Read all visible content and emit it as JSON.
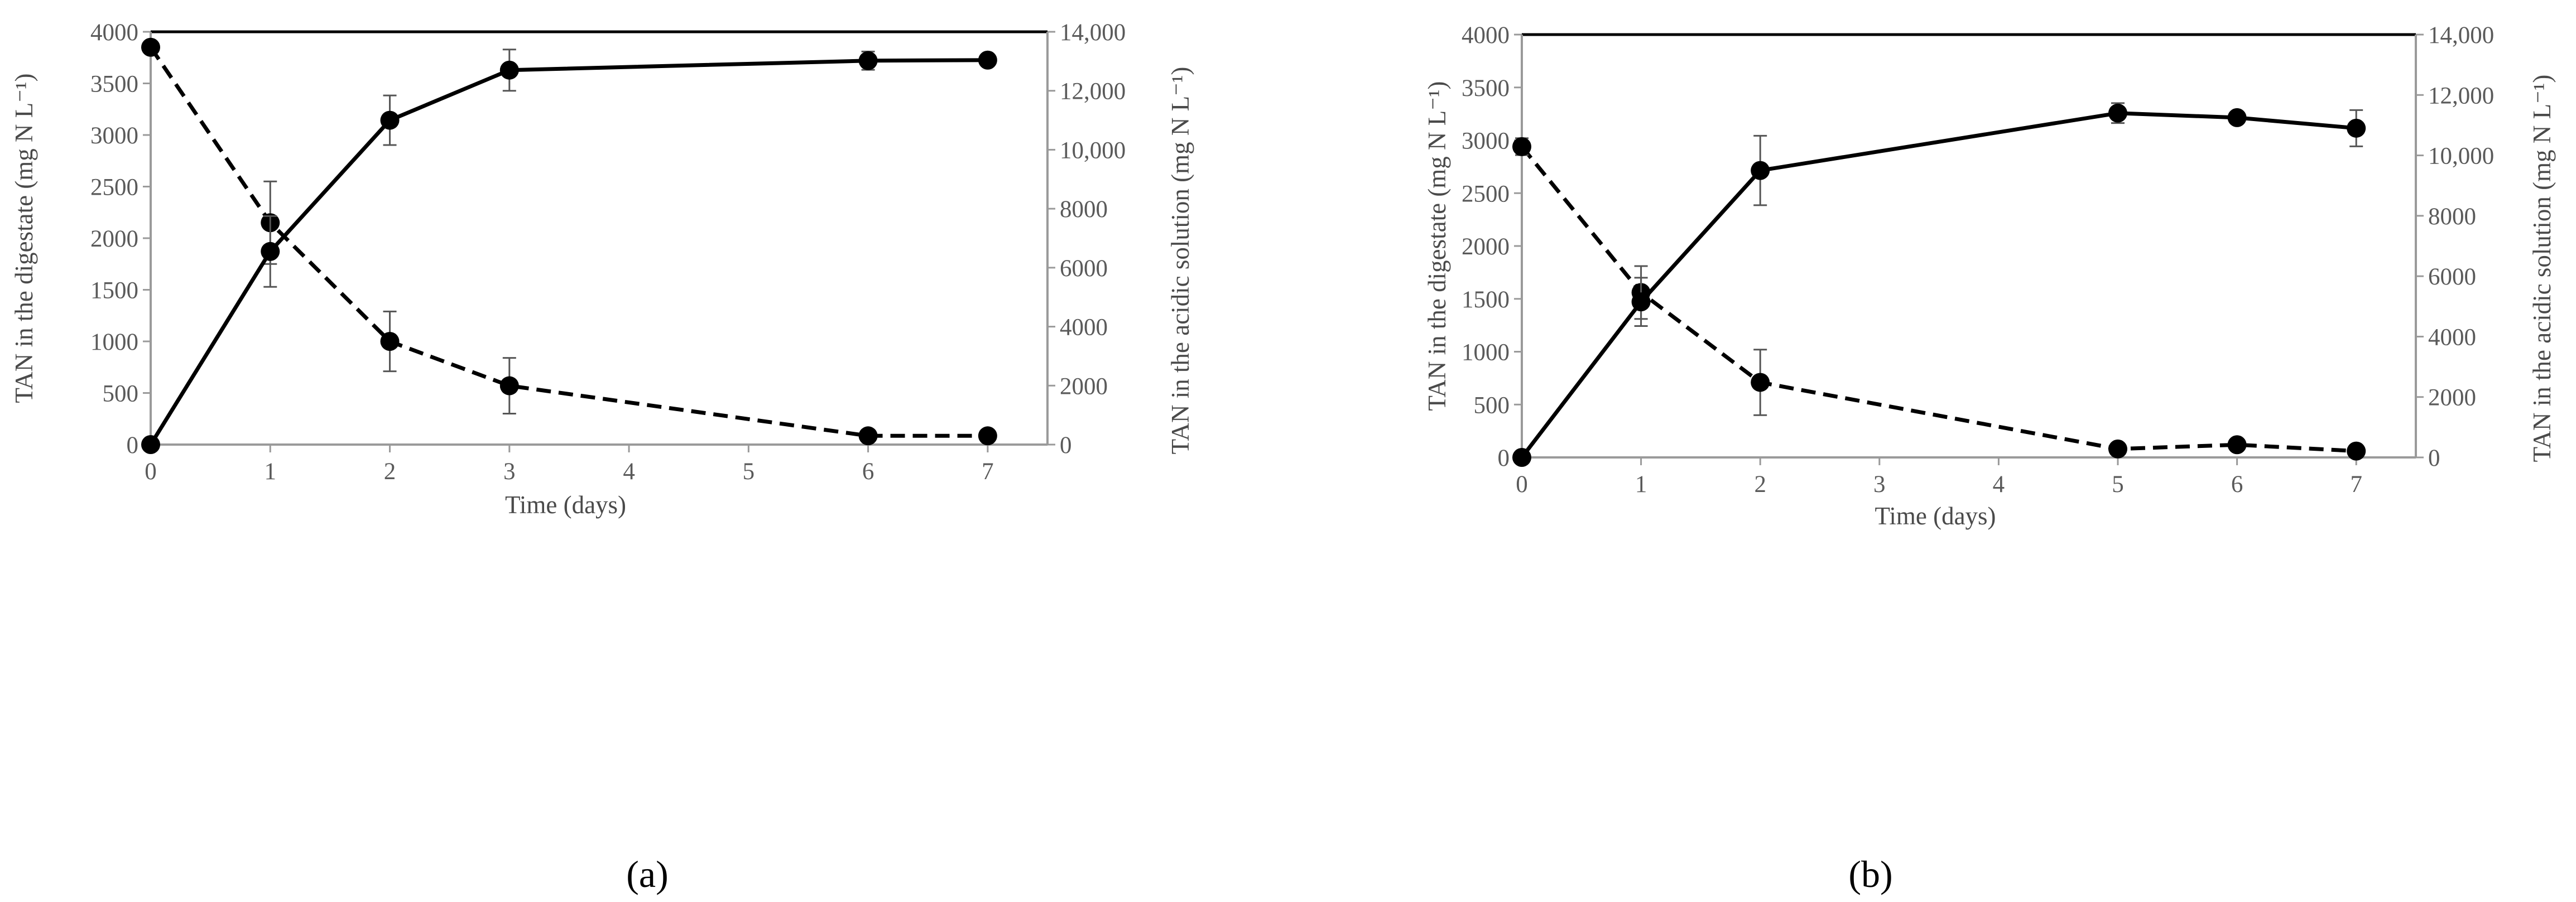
{
  "figure": {
    "panel_labels": [
      "(a)",
      "(b)"
    ]
  },
  "chart_data": [
    {
      "type": "line",
      "panel": "a",
      "xlabel": "Time (days)",
      "ylabel": "TAN in the digestate (mg N L⁻¹)",
      "y2label": "TAN in the acidic solution (mg N L⁻¹)",
      "xlim": [
        0,
        7.5
      ],
      "ylim": [
        0,
        4000
      ],
      "y2lim": [
        0,
        14000
      ],
      "x_ticks": [
        "0",
        "1",
        "2",
        "3",
        "4",
        "5",
        "6",
        "7"
      ],
      "y_ticks": [
        "0",
        "500",
        "1000",
        "1500",
        "2000",
        "2500",
        "3000",
        "3500",
        "4000"
      ],
      "y2_ticks": [
        "0",
        "2000",
        "4000",
        "6000",
        "8000",
        "10,000",
        "12,000",
        "14,000"
      ],
      "grid": false,
      "series": [
        {
          "axis": "left",
          "style": "dashed",
          "x": [
            0,
            1,
            2,
            3,
            6,
            7
          ],
          "y": [
            3850,
            2150,
            1000,
            570,
            85,
            85
          ],
          "err": [
            0,
            400,
            290,
            270,
            0,
            0
          ]
        },
        {
          "axis": "right",
          "style": "solid",
          "x": [
            0,
            1,
            2,
            3,
            6,
            7
          ],
          "y": [
            0,
            6550,
            11000,
            12700,
            13020,
            13040
          ],
          "err": [
            0,
            1200,
            840,
            700,
            310,
            0
          ]
        }
      ]
    },
    {
      "type": "line",
      "panel": "b",
      "xlabel": "Time (days)",
      "ylabel": "TAN in the digestate (mg N L⁻¹)",
      "y2label": "TAN in the acidic solution (mg N L⁻¹)",
      "xlim": [
        0,
        7.5
      ],
      "ylim": [
        0,
        4000
      ],
      "y2lim": [
        0,
        14000
      ],
      "x_ticks": [
        "0",
        "1",
        "2",
        "3",
        "4",
        "5",
        "6",
        "7"
      ],
      "y_ticks": [
        "0",
        "500",
        "1000",
        "1500",
        "2000",
        "2500",
        "3000",
        "3500",
        "4000"
      ],
      "y2_ticks": [
        "0",
        "2000",
        "4000",
        "6000",
        "8000",
        "10,000",
        "12,000",
        "14,000"
      ],
      "grid": false,
      "series": [
        {
          "axis": "left",
          "style": "dashed",
          "x": [
            0,
            1,
            2,
            5,
            6,
            7
          ],
          "y": [
            2940,
            1560,
            710,
            80,
            120,
            60
          ],
          "err": [
            80,
            250,
            310,
            0,
            0,
            0
          ]
        },
        {
          "axis": "right",
          "style": "solid",
          "x": [
            0,
            1,
            2,
            5,
            6,
            7
          ],
          "y": [
            0,
            5150,
            9500,
            11400,
            11250,
            10900
          ],
          "err": [
            0,
            800,
            1150,
            330,
            0,
            600
          ]
        }
      ]
    }
  ]
}
